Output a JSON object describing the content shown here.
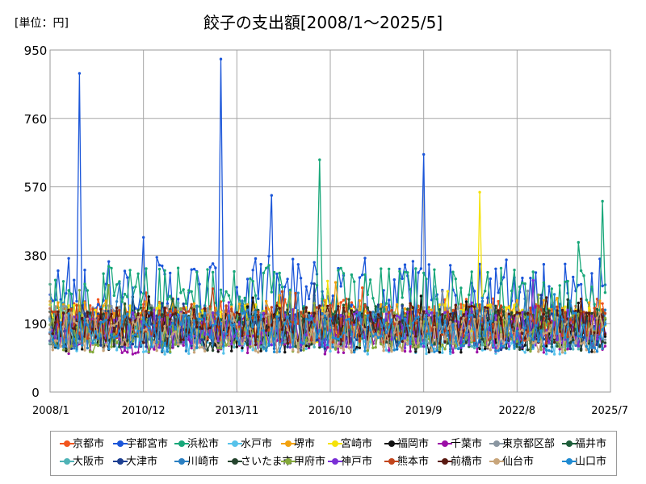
{
  "unit_label": "[単位：円]",
  "chart_data": {
    "type": "line",
    "title": "餃子の支出額[2008/1～2025/5]",
    "xlabel": "",
    "ylabel": "",
    "ylim": [
      0,
      950
    ],
    "yticks": [
      "0",
      "190",
      "380",
      "570",
      "760",
      "950"
    ],
    "xlim": [
      "2008/1",
      "2025/7"
    ],
    "xticks": [
      "2008/1",
      "2010/12",
      "2013/11",
      "2016/10",
      "2019/9",
      "2022/8",
      "2025/7"
    ],
    "grid": true,
    "legend_position": "bottom",
    "series": [
      {
        "name": "京都市",
        "color": "#f2551e"
      },
      {
        "name": "宇都宮市",
        "color": "#1b56d9"
      },
      {
        "name": "浜松市",
        "color": "#18a779"
      },
      {
        "name": "水戸市",
        "color": "#57c2ea"
      },
      {
        "name": "堺市",
        "color": "#f2a20f"
      },
      {
        "name": "宮崎市",
        "color": "#f4e20a"
      },
      {
        "name": "福岡市",
        "color": "#111111"
      },
      {
        "name": "千葉市",
        "color": "#9b0fa6"
      },
      {
        "name": "東京都区部",
        "color": "#8a96a1"
      },
      {
        "name": "福井市",
        "color": "#1e5e3a"
      },
      {
        "name": "大阪市",
        "color": "#4fb3b6"
      },
      {
        "name": "大津市",
        "color": "#1d3f91"
      },
      {
        "name": "川崎市",
        "color": "#2a7fc2"
      },
      {
        "name": "さいたま市",
        "color": "#25442e"
      },
      {
        "name": "甲府市",
        "color": "#84a93a"
      },
      {
        "name": "神戸市",
        "color": "#7a2fd6"
      },
      {
        "name": "熊本市",
        "color": "#c2451c"
      },
      {
        "name": "前橋市",
        "color": "#5a1a12"
      },
      {
        "name": "仙台市",
        "color": "#c8a57a"
      },
      {
        "name": "山口市",
        "color": "#1f8ad1"
      }
    ],
    "annotations": [
      {
        "series": "宇都宮市",
        "x": "2008/12",
        "y": 885
      },
      {
        "series": "宇都宮市",
        "x": "2013/5",
        "y": 925
      },
      {
        "series": "宇都宮市",
        "x": "2019/9",
        "y": 660
      },
      {
        "series": "浜松市",
        "x": "2016/6",
        "y": 645
      },
      {
        "series": "宮崎市",
        "x": "2021/6",
        "y": 555
      },
      {
        "series": "浜松市",
        "x": "2025/4",
        "y": 530
      }
    ]
  }
}
